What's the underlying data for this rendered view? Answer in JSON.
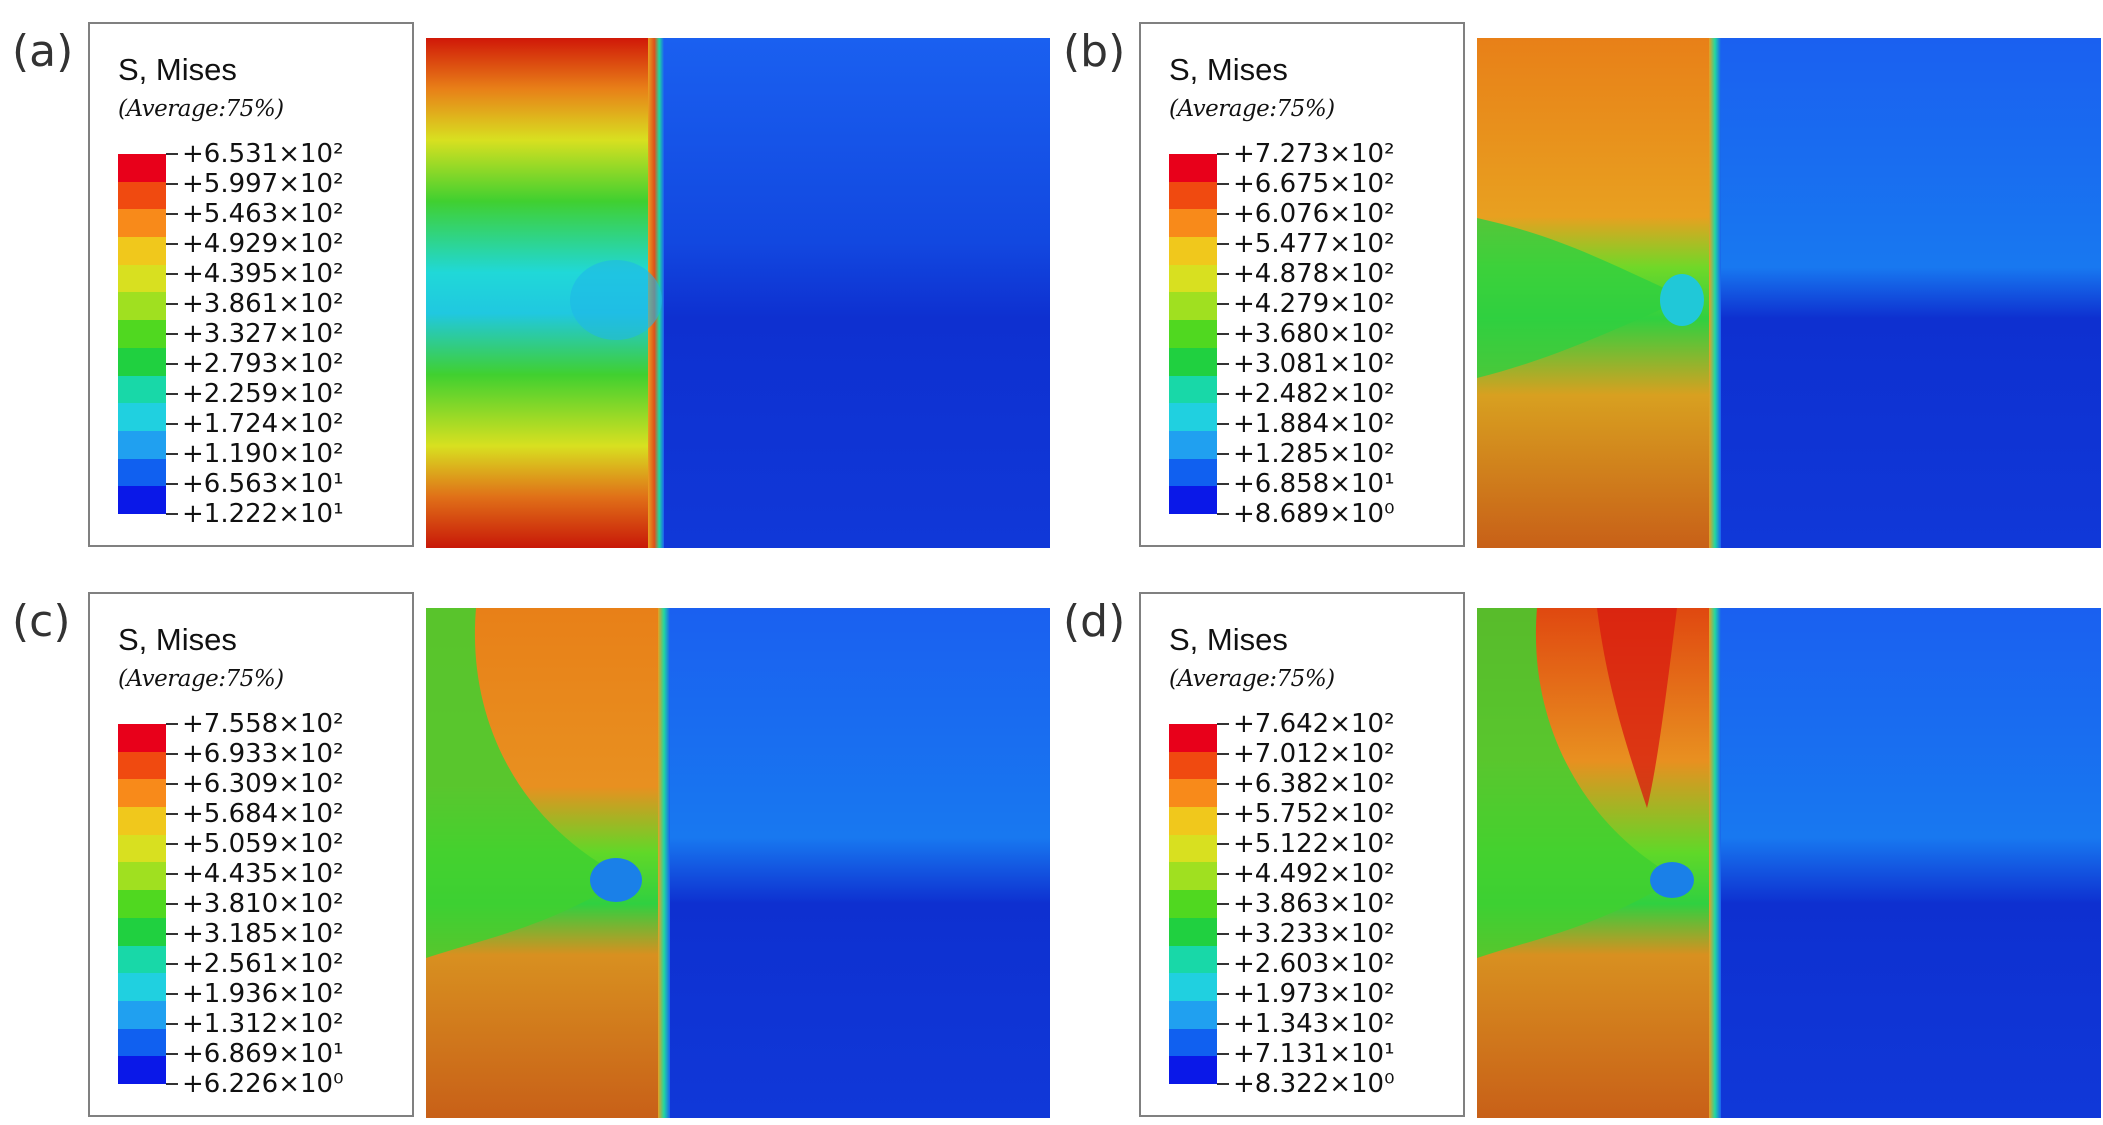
{
  "panels": [
    {
      "label": "(a)",
      "legend": {
        "title": "S, Mises",
        "subtitle": "(Average:75%)",
        "values": [
          "+6.531×10²",
          "+5.997×10²",
          "+5.463×10²",
          "+4.929×10²",
          "+4.395×10²",
          "+3.861×10²",
          "+3.327×10²",
          "+2.793×10²",
          "+2.259×10²",
          "+1.724×10²",
          "+1.190×10²",
          "+6.563×10¹",
          "+1.222×10¹"
        ]
      }
    },
    {
      "label": "(b)",
      "legend": {
        "title": "S, Mises",
        "subtitle": "(Average:75%)",
        "values": [
          "+7.273×10²",
          "+6.675×10²",
          "+6.076×10²",
          "+5.477×10²",
          "+4.878×10²",
          "+4.279×10²",
          "+3.680×10²",
          "+3.081×10²",
          "+2.482×10²",
          "+1.884×10²",
          "+1.285×10²",
          "+6.858×10¹",
          "+8.689×10⁰"
        ]
      }
    },
    {
      "label": "(c)",
      "legend": {
        "title": "S, Mises",
        "subtitle": "(Average:75%)",
        "values": [
          "+7.558×10²",
          "+6.933×10²",
          "+6.309×10²",
          "+5.684×10²",
          "+5.059×10²",
          "+4.435×10²",
          "+3.810×10²",
          "+3.185×10²",
          "+2.561×10²",
          "+1.936×10²",
          "+1.312×10²",
          "+6.869×10¹",
          "+6.226×10⁰"
        ]
      }
    },
    {
      "label": "(d)",
      "legend": {
        "title": "S, Mises",
        "subtitle": "(Average:75%)",
        "values": [
          "+7.642×10²",
          "+7.012×10²",
          "+6.382×10²",
          "+5.752×10²",
          "+5.122×10²",
          "+4.492×10²",
          "+3.863×10²",
          "+3.233×10²",
          "+2.603×10²",
          "+1.973×10²",
          "+1.343×10²",
          "+7.131×10¹",
          "+8.322×10⁰"
        ]
      }
    }
  ],
  "colors": {
    "colorbar": [
      "#e8001a",
      "#f04a10",
      "#f88a1a",
      "#f0c81c",
      "#d8e020",
      "#a0e020",
      "#50d820",
      "#20d040",
      "#18d8a8",
      "#20d0e0",
      "#20a0f0",
      "#1060f0",
      "#0a18e8"
    ],
    "red": "#d41a10",
    "orange": "#e8781c",
    "yellow": "#e8d020",
    "green": "#3cd030",
    "cyan": "#1ad8e0",
    "blue": "#1a48e0",
    "dark_blue": "#0e28c8"
  }
}
